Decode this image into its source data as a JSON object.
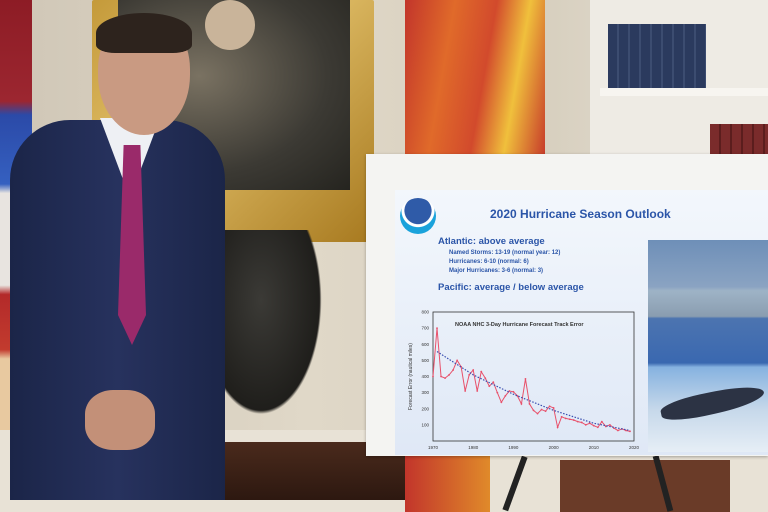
{
  "poster": {
    "logo_text": "NOAA",
    "title": "2020 Hurricane Season Outlook",
    "atlantic_heading": "Atlantic: above average",
    "atlantic_items": [
      "Named Storms: 13-19 (normal year: 12)",
      "Hurricanes: 6-10 (normal: 6)",
      "Major Hurricanes: 3-6 (normal: 3)"
    ],
    "pacific_heading": "Pacific: average / below average"
  },
  "colors": {
    "title_blue": "#2b55a8",
    "series_red": "#e8506a",
    "trend_blue": "#3a4fb0"
  },
  "chart_data": {
    "type": "line",
    "title": "NOAA NHC 3-Day Hurricane Forecast Track Error",
    "xlabel": "",
    "ylabel": "Forecast Error (nautical miles)",
    "xlim": [
      1970,
      2020
    ],
    "ylim": [
      0,
      800
    ],
    "xticks": [
      "1970",
      "1980",
      "1990",
      "2000",
      "2010",
      "2020"
    ],
    "yticks": [
      "100",
      "200",
      "300",
      "400",
      "500",
      "600",
      "700",
      "800"
    ],
    "grid": false,
    "series": [
      {
        "style": "solid-markers",
        "color": "#e8506a",
        "x": [
          1970,
          1971,
          1972,
          1973,
          1974,
          1975,
          1976,
          1977,
          1978,
          1979,
          1980,
          1981,
          1982,
          1983,
          1984,
          1985,
          1986,
          1987,
          1988,
          1989,
          1990,
          1991,
          1992,
          1993,
          1994,
          1995,
          1996,
          1997,
          1998,
          1999,
          2000,
          2001,
          2002,
          2003,
          2004,
          2005,
          2006,
          2007,
          2008,
          2009,
          2010,
          2011,
          2012,
          2013,
          2014,
          2015,
          2016,
          2017,
          2018,
          2019
        ],
        "y": [
          400,
          700,
          400,
          390,
          410,
          440,
          500,
          460,
          310,
          410,
          440,
          310,
          430,
          390,
          340,
          365,
          300,
          240,
          280,
          310,
          305,
          280,
          230,
          385,
          230,
          190,
          170,
          195,
          185,
          215,
          205,
          85,
          150,
          140,
          135,
          130,
          120,
          115,
          100,
          110,
          95,
          85,
          120,
          90,
          100,
          80,
          65,
          75,
          65,
          60
        ]
      },
      {
        "style": "dotted-trend",
        "color": "#3a4fb0",
        "x": [
          1971,
          1980,
          1990,
          2000,
          2010,
          2019
        ],
        "y": [
          555,
          410,
          290,
          190,
          110,
          65
        ]
      }
    ]
  }
}
